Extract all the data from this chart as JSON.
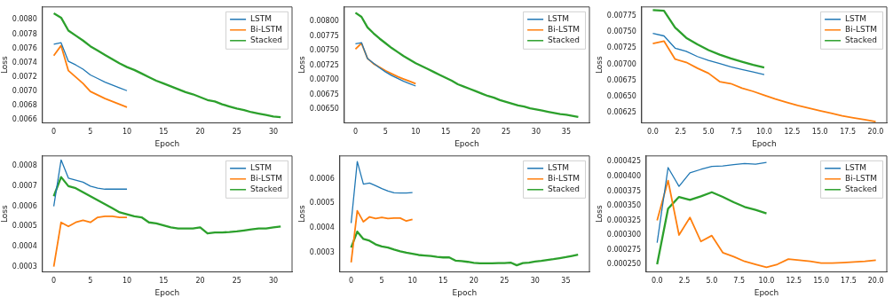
{
  "chart_data": [
    {
      "type": "line",
      "xlabel": "Epoch",
      "ylabel": "Loss",
      "legend": "top right",
      "grid": false,
      "xlim": [
        -1.55,
        32.55
      ],
      "xticks": [
        0,
        5,
        10,
        15,
        20,
        25,
        30
      ],
      "ylim": [
        0.00656,
        0.00818
      ],
      "yticks": [
        0.0066,
        0.0068,
        {
          "value": 0.007,
          "label": "0.0070"
        },
        0.0072,
        0.0074,
        0.0076,
        0.0078,
        {
          "value": 0.008,
          "label": "0.0080"
        }
      ],
      "series": [
        {
          "name": "LSTM",
          "color": "#1f77b4",
          "x": [
            0,
            1,
            2,
            3,
            4,
            5,
            6,
            7,
            8,
            9,
            10
          ],
          "values": [
            0.00766,
            0.00768,
            0.00742,
            0.00737,
            0.00731,
            0.00723,
            0.00718,
            0.00713,
            0.00709,
            0.00705,
            0.00701
          ]
        },
        {
          "name": "Bi-LSTM",
          "color": "#ff7f0e",
          "x": [
            0,
            1,
            2,
            3,
            4,
            5,
            6,
            7,
            8,
            9,
            10
          ],
          "values": [
            0.0075,
            0.00764,
            0.00729,
            0.0072,
            0.00711,
            0.007,
            0.00695,
            0.0069,
            0.00686,
            0.00682,
            0.00678
          ]
        },
        {
          "name": "Stacked",
          "color": "#2ca02c",
          "x": [
            0,
            1,
            2,
            3,
            4,
            5,
            6,
            7,
            8,
            9,
            10,
            11,
            12,
            13,
            14,
            15,
            16,
            17,
            18,
            19,
            20,
            21,
            22,
            23,
            24,
            25,
            26,
            27,
            28,
            29,
            30,
            31
          ],
          "values": [
            0.00809,
            0.00803,
            0.00785,
            0.00778,
            0.00771,
            0.00763,
            0.00757,
            0.00751,
            0.00745,
            0.00739,
            0.00734,
            0.0073,
            0.00725,
            0.0072,
            0.00715,
            0.00711,
            0.00707,
            0.00703,
            0.00699,
            0.00696,
            0.00692,
            0.00688,
            0.00686,
            0.00682,
            0.00679,
            0.00676,
            0.00674,
            0.00671,
            0.00669,
            0.00667,
            0.00665,
            0.00664
          ]
        }
      ]
    },
    {
      "type": "line",
      "xlabel": "Epoch",
      "ylabel": "Loss",
      "legend": "top right",
      "grid": false,
      "xlim": [
        -1.85,
        38.85
      ],
      "xticks": [
        0,
        5,
        10,
        15,
        20,
        25,
        30,
        35
      ],
      "ylim": [
        0.00627,
        0.00825
      ],
      "yticks": [
        {
          "value": 0.0065,
          "label": "0.00650"
        },
        0.00675,
        {
          "value": 0.007,
          "label": "0.00700"
        },
        0.00725,
        {
          "value": 0.0075,
          "label": "0.00750"
        },
        0.00775,
        {
          "value": 0.008,
          "label": "0.00800"
        }
      ],
      "series": [
        {
          "name": "LSTM",
          "color": "#1f77b4",
          "x": [
            0,
            1,
            2,
            3,
            4,
            5,
            6,
            7,
            8,
            9,
            10
          ],
          "values": [
            0.00762,
            0.00764,
            0.00737,
            0.00729,
            0.00721,
            0.00714,
            0.00708,
            0.00703,
            0.00698,
            0.00694,
            0.0069
          ]
        },
        {
          "name": "Bi-LSTM",
          "color": "#ff7f0e",
          "x": [
            0,
            1,
            2,
            3,
            4,
            5,
            6,
            7,
            8,
            9,
            10
          ],
          "values": [
            0.00753,
            0.00763,
            0.00737,
            0.00728,
            0.00722,
            0.00716,
            0.00711,
            0.00706,
            0.00702,
            0.00698,
            0.00694
          ]
        },
        {
          "name": "Stacked",
          "color": "#2ca02c",
          "x": [
            0,
            1,
            2,
            3,
            4,
            5,
            6,
            7,
            8,
            9,
            10,
            11,
            12,
            13,
            14,
            15,
            16,
            17,
            18,
            19,
            20,
            21,
            22,
            23,
            24,
            25,
            26,
            27,
            28,
            29,
            30,
            31,
            32,
            33,
            34,
            35,
            36,
            37
          ],
          "values": [
            0.00815,
            0.00808,
            0.0079,
            0.0078,
            0.00771,
            0.00763,
            0.00755,
            0.00748,
            0.00741,
            0.00735,
            0.00729,
            0.00724,
            0.00719,
            0.00714,
            0.00709,
            0.00704,
            0.00699,
            0.00693,
            0.00689,
            0.00685,
            0.00681,
            0.00677,
            0.00673,
            0.0067,
            0.00666,
            0.00663,
            0.0066,
            0.00657,
            0.00655,
            0.00652,
            0.0065,
            0.00648,
            0.00646,
            0.00644,
            0.00642,
            0.00641,
            0.00639,
            0.00637
          ]
        }
      ]
    },
    {
      "type": "line",
      "xlabel": "Epoch",
      "ylabel": "Loss",
      "legend": "top right",
      "grid": false,
      "xlim": [
        -1,
        21
      ],
      "xticks": [
        {
          "value": 0,
          "label": "0.0"
        },
        2.5,
        {
          "value": 5,
          "label": "5.0"
        },
        7.5,
        {
          "value": 10,
          "label": "10.0"
        },
        12.5,
        {
          "value": 15,
          "label": "15.0"
        },
        17.5,
        {
          "value": 20,
          "label": "20.0"
        }
      ],
      "ylim": [
        0.00609,
        0.00789
      ],
      "yticks": [
        0.00625,
        {
          "value": 0.0065,
          "label": "0.00650"
        },
        0.00675,
        {
          "value": 0.007,
          "label": "0.00700"
        },
        0.00725,
        {
          "value": 0.0075,
          "label": "0.00750"
        },
        0.00775
      ],
      "series": [
        {
          "name": "LSTM",
          "color": "#1f77b4",
          "x": [
            0,
            1,
            2,
            3,
            4,
            5,
            6,
            7,
            8,
            9,
            10
          ],
          "values": [
            0.00748,
            0.00744,
            0.00725,
            0.0072,
            0.00712,
            0.00706,
            0.00701,
            0.00696,
            0.00692,
            0.00688,
            0.00684
          ]
        },
        {
          "name": "Bi-LSTM",
          "color": "#ff7f0e",
          "x": [
            0,
            1,
            2,
            3,
            4,
            5,
            6,
            7,
            8,
            9,
            10,
            11,
            12,
            13,
            14,
            15,
            16,
            17,
            18,
            19,
            20
          ],
          "values": [
            0.00732,
            0.00736,
            0.00708,
            0.00703,
            0.00694,
            0.00686,
            0.00673,
            0.0067,
            0.00663,
            0.00658,
            0.00652,
            0.00646,
            0.00641,
            0.00636,
            0.00632,
            0.00628,
            0.00624,
            0.0062,
            0.00617,
            0.00614,
            0.00611
          ]
        },
        {
          "name": "Stacked",
          "color": "#2ca02c",
          "x": [
            0,
            1,
            2,
            3,
            4,
            5,
            6,
            7,
            8,
            9,
            10
          ],
          "values": [
            0.00784,
            0.00783,
            0.00757,
            0.00741,
            0.00731,
            0.00722,
            0.00715,
            0.00709,
            0.00704,
            0.00699,
            0.00695
          ]
        }
      ]
    },
    {
      "type": "line",
      "xlabel": "Epoch",
      "ylabel": "Loss",
      "legend": "top right",
      "grid": false,
      "xlim": [
        -1.55,
        32.55
      ],
      "xticks": [
        0,
        5,
        10,
        15,
        20,
        25,
        30
      ],
      "ylim": [
        0.000274,
        0.00085
      ],
      "yticks": [
        0.0003,
        0.0004,
        0.0005,
        0.0006,
        0.0007,
        0.0008
      ],
      "series": [
        {
          "name": "LSTM",
          "color": "#1f77b4",
          "x": [
            0,
            1,
            2,
            3,
            4,
            5,
            6,
            7,
            8,
            9,
            10
          ],
          "values": [
            0.0006,
            0.00083,
            0.00074,
            0.00073,
            0.00072,
            0.0007,
            0.00069,
            0.000685,
            0.000685,
            0.000685,
            0.000685
          ]
        },
        {
          "name": "Bi-LSTM",
          "color": "#ff7f0e",
          "x": [
            0,
            1,
            2,
            3,
            4,
            5,
            6,
            7,
            8,
            9,
            10
          ],
          "values": [
            0.0003,
            0.00052,
            0.0005,
            0.00052,
            0.00053,
            0.00052,
            0.000545,
            0.00055,
            0.00055,
            0.000545,
            0.000545
          ]
        },
        {
          "name": "Stacked",
          "color": "#2ca02c",
          "x": [
            0,
            1,
            2,
            3,
            4,
            5,
            6,
            7,
            8,
            9,
            10,
            11,
            12,
            13,
            14,
            15,
            16,
            17,
            18,
            19,
            20,
            21,
            22,
            23,
            24,
            25,
            26,
            27,
            28,
            29,
            30,
            31
          ],
          "values": [
            0.00065,
            0.000745,
            0.0007,
            0.00069,
            0.00067,
            0.00065,
            0.00063,
            0.00061,
            0.00059,
            0.00057,
            0.00056,
            0.00055,
            0.000545,
            0.00052,
            0.000515,
            0.000505,
            0.000495,
            0.00049,
            0.00049,
            0.00049,
            0.000495,
            0.000465,
            0.00047,
            0.00047,
            0.000472,
            0.000475,
            0.00048,
            0.000485,
            0.00049,
            0.00049,
            0.000495,
            0.0005
          ]
        }
      ]
    },
    {
      "type": "line",
      "xlabel": "Epoch",
      "ylabel": "Loss",
      "legend": "top right",
      "grid": false,
      "xlim": [
        -1.85,
        38.85
      ],
      "xticks": [
        0,
        5,
        10,
        15,
        20,
        25,
        30,
        35
      ],
      "ylim": [
        0.000221,
        0.000693
      ],
      "yticks": [
        0.0003,
        0.0004,
        0.0005,
        0.0006
      ],
      "series": [
        {
          "name": "LSTM",
          "color": "#1f77b4",
          "x": [
            0,
            1,
            2,
            3,
            4,
            5,
            6,
            7,
            8,
            9,
            10
          ],
          "values": [
            0.00042,
            0.00067,
            0.000578,
            0.000583,
            0.000572,
            0.00056,
            0.00055,
            0.000543,
            0.000542,
            0.000542,
            0.000544
          ]
        },
        {
          "name": "Bi-LSTM",
          "color": "#ff7f0e",
          "x": [
            0,
            1,
            2,
            3,
            4,
            5,
            6,
            7,
            8,
            9,
            10
          ],
          "values": [
            0.00026,
            0.00047,
            0.000425,
            0.000445,
            0.000438,
            0.000443,
            0.000438,
            0.00044,
            0.00044,
            0.000428,
            0.000435
          ]
        },
        {
          "name": "Stacked",
          "color": "#2ca02c",
          "x": [
            0,
            1,
            2,
            3,
            4,
            5,
            6,
            7,
            8,
            9,
            10,
            11,
            12,
            13,
            14,
            15,
            16,
            17,
            18,
            19,
            20,
            21,
            22,
            23,
            24,
            25,
            26,
            27,
            28,
            29,
            30,
            31,
            32,
            33,
            34,
            35,
            36,
            37
          ],
          "values": [
            0.00032,
            0.000385,
            0.000355,
            0.000348,
            0.000333,
            0.000325,
            0.00032,
            0.000312,
            0.000305,
            0.000299,
            0.000295,
            0.00029,
            0.000288,
            0.000286,
            0.000282,
            0.00028,
            0.00028,
            0.000267,
            0.000265,
            0.000262,
            0.000258,
            0.000256,
            0.000256,
            0.000256,
            0.000257,
            0.000257,
            0.000259,
            0.000248,
            0.000257,
            0.000259,
            0.000263,
            0.000266,
            0.00027,
            0.000273,
            0.000277,
            0.000281,
            0.000286,
            0.000291
          ]
        }
      ]
    },
    {
      "type": "line",
      "xlabel": "Epoch",
      "ylabel": "Loss",
      "legend": "top right",
      "grid": false,
      "xlim": [
        -1,
        21
      ],
      "xticks": [
        {
          "value": 0,
          "label": "0.0"
        },
        2.5,
        {
          "value": 5,
          "label": "5.0"
        },
        7.5,
        {
          "value": 10,
          "label": "10.0"
        },
        12.5,
        {
          "value": 15,
          "label": "15.0"
        },
        17.5,
        {
          "value": 20,
          "label": "20.0"
        }
      ],
      "ylim": [
        0.000237,
        0.000435
      ],
      "yticks": [
        {
          "value": 0.00025,
          "label": "0.000250"
        },
        0.000275,
        {
          "value": 0.0003,
          "label": "0.000300"
        },
        0.000325,
        {
          "value": 0.00035,
          "label": "0.000350"
        },
        0.000375,
        {
          "value": 0.0004,
          "label": "0.000400"
        },
        0.000425
      ],
      "series": [
        {
          "name": "LSTM",
          "color": "#1f77b4",
          "x": [
            0,
            1,
            2,
            3,
            4,
            5,
            6,
            7,
            8,
            9,
            10
          ],
          "values": [
            0.000287,
            0.000415,
            0.000383,
            0.000406,
            0.000412,
            0.000417,
            0.000418,
            0.00042,
            0.000422,
            0.000421,
            0.000424
          ]
        },
        {
          "name": "Bi-LSTM",
          "color": "#ff7f0e",
          "x": [
            0,
            1,
            2,
            3,
            4,
            5,
            6,
            7,
            8,
            9,
            10,
            11,
            12,
            13,
            14,
            15,
            16,
            17,
            18,
            19,
            20
          ],
          "values": [
            0.000325,
            0.000393,
            0.0003,
            0.00033,
            0.000289,
            0.000299,
            0.00027,
            0.000263,
            0.000255,
            0.00025,
            0.000245,
            0.00025,
            0.000259,
            0.000257,
            0.000255,
            0.000252,
            0.000252,
            0.000253,
            0.000254,
            0.000255,
            0.000257
          ]
        },
        {
          "name": "Stacked",
          "color": "#2ca02c",
          "x": [
            0,
            1,
            2,
            3,
            4,
            5,
            6,
            7,
            8,
            9,
            10
          ],
          "values": [
            0.00025,
            0.000345,
            0.000365,
            0.00036,
            0.000366,
            0.000373,
            0.000365,
            0.000356,
            0.000348,
            0.000343,
            0.000337
          ]
        }
      ]
    }
  ]
}
